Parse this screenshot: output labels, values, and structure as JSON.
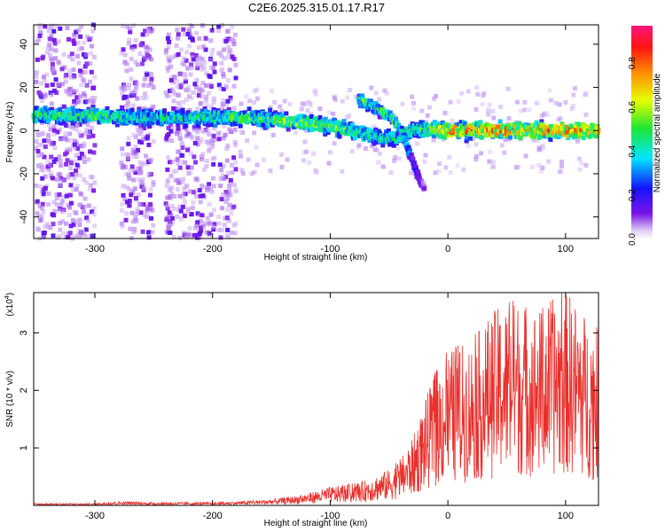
{
  "figure": {
    "title": "C2E6.2025.315.01.17.R17"
  },
  "chart_data": [
    {
      "type": "heatmap",
      "xlabel": "Height of straight line (km)",
      "ylabel": "Frequency (Hz)",
      "xlim": [
        -352,
        128
      ],
      "ylim": [
        -50,
        49
      ],
      "xticks": [
        -300,
        -200,
        -100,
        0,
        100
      ],
      "yticks": [
        -40,
        -20,
        0,
        20,
        40
      ],
      "colorbar": {
        "label": "Normalized spectral amplitude",
        "range": [
          0,
          0.97
        ],
        "ticks": [
          0.0,
          0.2,
          0.4,
          0.6,
          0.8
        ],
        "colormap": "rainbow (purple-blue-cyan-green-yellow-orange-red-magenta)"
      },
      "ridge": [
        {
          "x": -325,
          "f": 7,
          "amp": 0.5
        },
        {
          "x": -300,
          "f": 7,
          "amp": 0.55
        },
        {
          "x": -275,
          "f": 6,
          "amp": 0.45
        },
        {
          "x": -250,
          "f": 6,
          "amp": 0.45
        },
        {
          "x": -225,
          "f": 6,
          "amp": 0.45
        },
        {
          "x": -200,
          "f": 6,
          "amp": 0.5
        },
        {
          "x": -175,
          "f": 6,
          "amp": 0.5
        },
        {
          "x": -150,
          "f": 5,
          "amp": 0.55
        },
        {
          "x": -125,
          "f": 4,
          "amp": 0.6
        },
        {
          "x": -100,
          "f": 2,
          "amp": 0.55
        },
        {
          "x": -75,
          "f": -1,
          "amp": 0.5
        },
        {
          "x": -50,
          "f": -4,
          "amp": 0.45
        },
        {
          "x": -25,
          "f": 1,
          "amp": 0.5
        },
        {
          "x": 0,
          "f": 0,
          "amp": 0.75
        },
        {
          "x": 25,
          "f": 0,
          "amp": 0.8
        },
        {
          "x": 50,
          "f": 0,
          "amp": 0.8
        },
        {
          "x": 75,
          "f": 0,
          "amp": 0.75
        },
        {
          "x": 100,
          "f": 0,
          "amp": 0.8
        },
        {
          "x": 125,
          "f": 0,
          "amp": 0.7
        }
      ],
      "branch": [
        {
          "x": -75,
          "f": 14,
          "amp": 0.55
        },
        {
          "x": -60,
          "f": 10,
          "amp": 0.5
        },
        {
          "x": -50,
          "f": 7,
          "amp": 0.55
        },
        {
          "x": -40,
          "f": 0,
          "amp": 0.5
        },
        {
          "x": -30,
          "f": -15,
          "amp": 0.25
        },
        {
          "x": -20,
          "f": -28,
          "amp": 0.15
        }
      ]
    },
    {
      "type": "line",
      "xlabel": "Height of straight line (km)",
      "ylabel": "SNR (10 * v/v)",
      "yscale_label": "(x10",
      "yscale_exp": "4",
      "xlim": [
        -352,
        128
      ],
      "ylim": [
        0,
        3.7
      ],
      "xticks": [
        -300,
        -200,
        -100,
        0,
        100
      ],
      "yticks": [
        1,
        2,
        3
      ],
      "color": "#e8302c",
      "series": [
        {
          "x": [
            -350,
            -300,
            -280,
            -250,
            -200,
            -175,
            -150,
            -125,
            -100,
            -75,
            -50,
            -40,
            -30,
            -20,
            -10,
            0,
            20,
            40,
            60,
            80,
            100,
            120,
            128
          ],
          "y": [
            0.02,
            0.02,
            0.04,
            0.03,
            0.03,
            0.04,
            0.06,
            0.1,
            0.18,
            0.22,
            0.35,
            0.45,
            0.65,
            1.0,
            1.3,
            1.5,
            1.6,
            1.9,
            2.0,
            1.9,
            2.1,
            1.8,
            1.7
          ]
        }
      ]
    }
  ]
}
